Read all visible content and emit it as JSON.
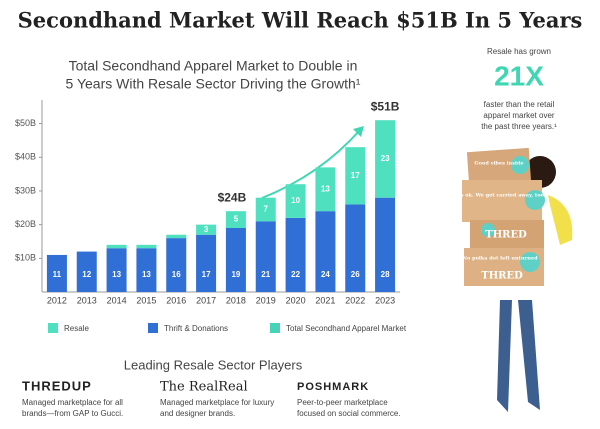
{
  "chart_data": {
    "type": "bar",
    "stacked": true,
    "title": "Secondhand Market Will Reach $51B In 5 Years",
    "subtitle": [
      "Total Secondhand Apparel Market to Double in",
      "5 Years With Resale Sector Driving the Growth¹"
    ],
    "categories": [
      "2012",
      "2013",
      "2014",
      "2015",
      "2016",
      "2017",
      "2018",
      "2019",
      "2020",
      "2021",
      "2022",
      "2023"
    ],
    "series": [
      {
        "name": "Thrift & Donations",
        "color": "#2f6fd6",
        "values": [
          11,
          12,
          13,
          13,
          16,
          17,
          19,
          21,
          22,
          24,
          26,
          28
        ]
      },
      {
        "name": "Resale",
        "color": "#4fe0c0",
        "values": [
          0,
          0,
          1,
          1,
          1,
          3,
          5,
          7,
          10,
          13,
          17,
          23
        ],
        "value_labels": [
          null,
          null,
          null,
          null,
          null,
          "3",
          "5",
          "7",
          "10",
          "13",
          "17",
          "23"
        ]
      }
    ],
    "total_legend": {
      "name": "Total Secondhand Apparel Market",
      "color": "#47d3b8"
    },
    "annotations": [
      {
        "text": "$24B",
        "category": 6
      },
      {
        "text": "$51B",
        "category": 11
      }
    ],
    "ylim": [
      0,
      57
    ],
    "yticks": [
      {
        "value": 10,
        "label": "$10B"
      },
      {
        "value": 20,
        "label": "$20B"
      },
      {
        "value": 30,
        "label": "$30B"
      },
      {
        "value": 40,
        "label": "$40B"
      },
      {
        "value": 50,
        "label": "$50B"
      }
    ]
  },
  "side": {
    "lead": "Resale has grown",
    "figure": "21X",
    "description": [
      "faster than the retail",
      "apparel market over",
      "the past three years.¹"
    ],
    "boxes": [
      "Good vibes inside",
      "It's ok. We get carried away, too.",
      "THRED",
      "No polka dot left unturned",
      "THRED"
    ]
  },
  "players": {
    "title": "Leading Resale Sector Players",
    "items": [
      {
        "name": "THREDUP",
        "description": [
          "Managed marketplace for all",
          "brands—from GAP to Gucci."
        ]
      },
      {
        "name": "The RealReal",
        "description": [
          "Managed marketplace for luxury",
          "and designer brands."
        ]
      },
      {
        "name": "POSHMARK",
        "description": [
          "Peer-to-peer marketplace",
          "focused on social commerce."
        ]
      }
    ]
  }
}
